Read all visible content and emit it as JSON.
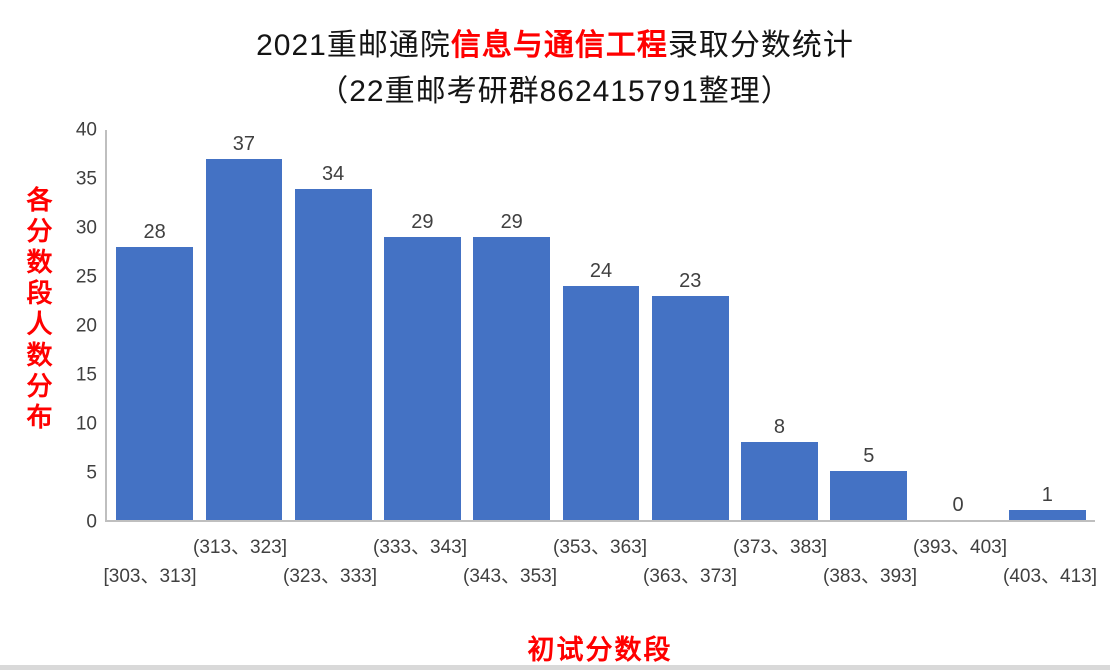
{
  "title": {
    "line1_prefix": "2021重邮通院",
    "line1_highlight": "信息与通信工程",
    "line1_suffix": "录取分数统计",
    "line2": "（22重邮考研群862415791整理）"
  },
  "chart_data": {
    "type": "bar",
    "title": "2021重邮通院信息与通信工程录取分数统计（22重邮考研群862415791整理）",
    "categories": [
      "[303、313]",
      "(313、323]",
      "(323、333]",
      "(333、343]",
      "(343、353]",
      "(353、363]",
      "(363、373]",
      "(373、383]",
      "(383、393]",
      "(393、403]",
      "(403、413]"
    ],
    "values": [
      28,
      37,
      34,
      29,
      29,
      24,
      23,
      8,
      5,
      0,
      1
    ],
    "xlabel": "初试分数段",
    "ylabel": "各分数段人数分布",
    "ylim": [
      0,
      40
    ],
    "yticks": [
      0,
      5,
      10,
      15,
      20,
      25,
      30,
      35,
      40
    ],
    "grid": false,
    "legend": "none",
    "stagger_x_labels": true,
    "bar_color": "#4472c4",
    "value_label_color": "#404040",
    "tick_label_color": "#404040",
    "axis_title_color": "#ff0000",
    "axis_line_color": "#bfbfbf",
    "title_highlight_color": "#ff0000"
  }
}
